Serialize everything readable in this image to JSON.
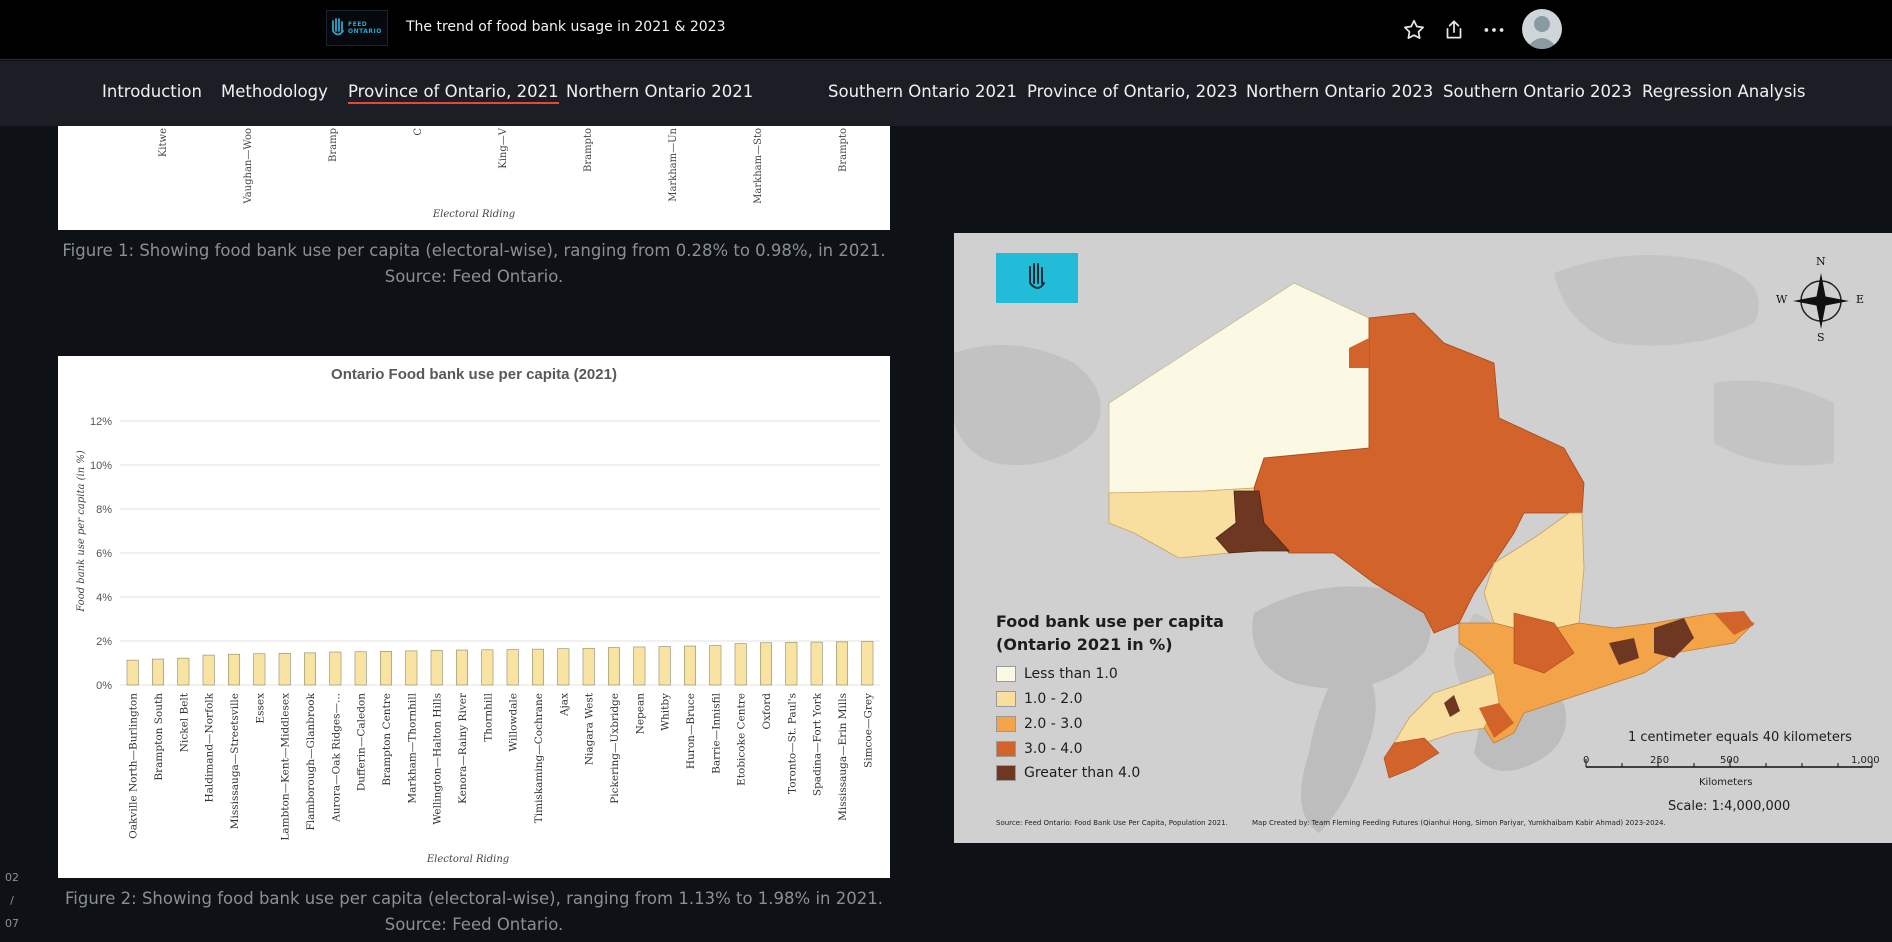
{
  "header": {
    "logo_text_line1": "FEED",
    "logo_text_line2": "ONTARIO",
    "title": "The trend of food bank usage in 2021 & 2023"
  },
  "icons": {
    "star": "star-icon",
    "share": "share-icon",
    "more": "more-icon",
    "avatar": "user-avatar-icon",
    "hand": "hand-logo-icon",
    "compass": "compass-rose-icon"
  },
  "nav": {
    "items": [
      {
        "label": "Introduction",
        "active": false
      },
      {
        "label": "Methodology",
        "active": false
      },
      {
        "label": "Province of Ontario, 2021",
        "active": true
      },
      {
        "label": "Northern Ontario 2021",
        "active": false
      },
      {
        "label": "Southern Ontario 2021",
        "active": false
      },
      {
        "label": "Province of Ontario, 2023",
        "active": false
      },
      {
        "label": "Northern Ontario 2023",
        "active": false
      },
      {
        "label": "Southern Ontario 2023",
        "active": false
      },
      {
        "label": "Regression Analysis",
        "active": false
      }
    ]
  },
  "figure1": {
    "tick_labels": [
      "Kitwe",
      "Vaughan—Woo",
      "Bramp",
      "C",
      "King—V",
      "Brampto",
      "Markham—Un",
      "Markham—Sto",
      "Brampto"
    ],
    "xlabel": "Electoral Riding",
    "caption": "Figure 1: Showing food bank use per capita (electoral-wise), ranging from 0.28% to 0.98%, in 2021. Source: Feed Ontario."
  },
  "chart_data": {
    "type": "bar",
    "title": "Ontario Food bank use per capita (2021)",
    "xlabel": "Electoral Riding",
    "ylabel": "Food bank use per capita (in %)",
    "ylim": [
      0,
      12
    ],
    "yticks": [
      "0%",
      "2%",
      "4%",
      "6%",
      "8%",
      "10%",
      "12%"
    ],
    "grid": true,
    "bar_color": "#f8e3a3",
    "bar_edge": "#8a8a6a",
    "categories": [
      "Oakville North—Burlington",
      "Brampton South",
      "Nickel Belt",
      "Haldimand—Norfolk",
      "Mississauga—Streetsville",
      "Essex",
      "Lambton—Kent—Middlesex",
      "Flamborough—Glanbrook",
      "Aurora—Oak Ridges—...",
      "Dufferin—Caledon",
      "Brampton Centre",
      "Markham—Thornhill",
      "Wellington—Halton Hills",
      "Kenora—Rainy River",
      "Thornhill",
      "Willowdale",
      "Timiskaming—Cochrane",
      "Ajax",
      "Niagara West",
      "Pickering—Uxbridge",
      "Nepean",
      "Whitby",
      "Huron—Bruce",
      "Barrie—Innisfil",
      "Etobicoke Centre",
      "Oxford",
      "Toronto—St. Paul's",
      "Spadina—Fort York",
      "Mississauga—Erin Mills",
      "Simcoe—Grey"
    ],
    "values": [
      1.13,
      1.18,
      1.22,
      1.36,
      1.4,
      1.42,
      1.44,
      1.46,
      1.5,
      1.51,
      1.53,
      1.55,
      1.58,
      1.59,
      1.6,
      1.61,
      1.63,
      1.65,
      1.67,
      1.7,
      1.73,
      1.75,
      1.77,
      1.79,
      1.88,
      1.92,
      1.94,
      1.95,
      1.96,
      1.98
    ]
  },
  "figure2": {
    "caption": "Figure 2: Showing food bank use per capita (electoral-wise), ranging from 1.13% to 1.98% in 2021. Source: Feed Ontario."
  },
  "map": {
    "legend_title_line1": "Food bank use per capita",
    "legend_title_line2": "(Ontario 2021 in %)",
    "legend": [
      {
        "label": "Less than 1.0",
        "color": "#fbf8e4"
      },
      {
        "label": "1.0 - 2.0",
        "color": "#f8dfa0"
      },
      {
        "label": "2.0 - 3.0",
        "color": "#f4a448"
      },
      {
        "label": "3.0 - 4.0",
        "color": "#d2632a"
      },
      {
        "label": "Greater than 4.0",
        "color": "#6e3722"
      }
    ],
    "compass": {
      "n": "N",
      "s": "S",
      "e": "E",
      "w": "W"
    },
    "scale_text": "1 centimeter equals 40 kilometers",
    "scale_ticks": [
      "0",
      "250",
      "500",
      "1,000"
    ],
    "scale_unit": "Kilometers",
    "scale_ratio": "Scale: 1:4,000,000",
    "source": "Source: Feed Ontario: Food Bank Use Per Capita, Population 2021.",
    "credits": "Map Created by: Team Fleming Feeding Futures (Qianhui Hong, Simon Pariyar, Yumkhaibam Kabir Ahmad) 2023-2024."
  },
  "page_indicator": {
    "current": "02",
    "sep": "/",
    "total": "07"
  },
  "colors": {
    "accent_underline": "#e8463a",
    "map_logo": "#22bcd8",
    "background": "#0e1116"
  }
}
